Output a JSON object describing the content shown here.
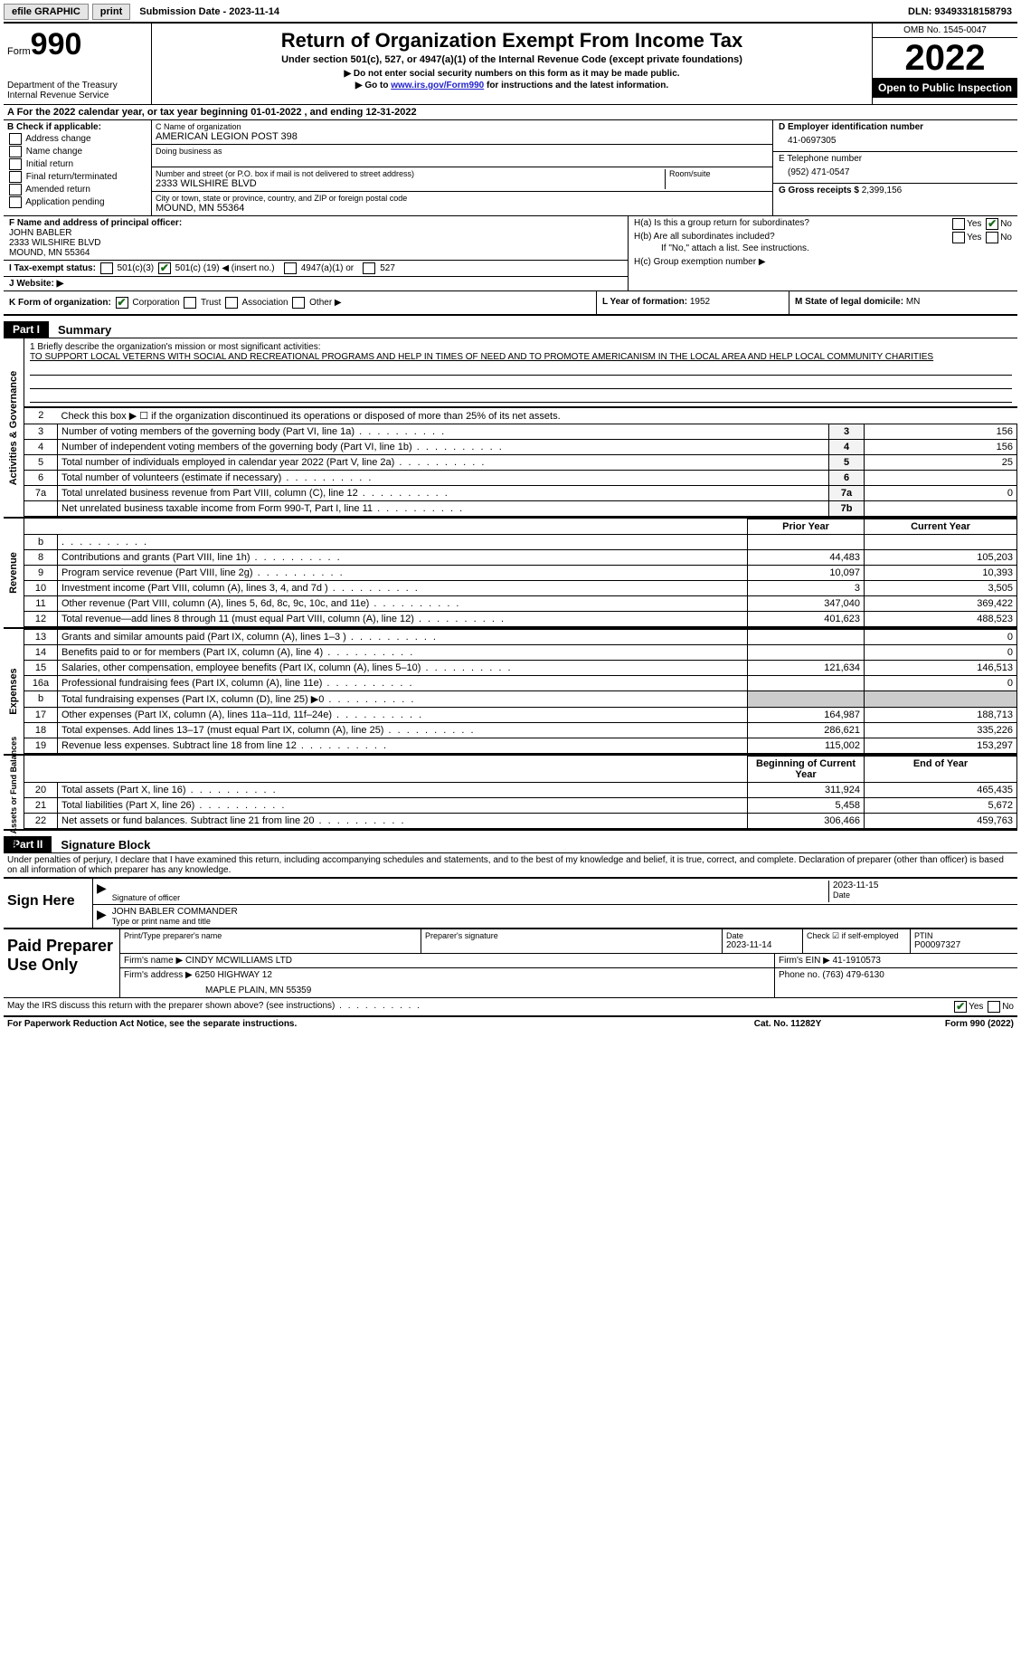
{
  "topbar": {
    "efile": "efile GRAPHIC",
    "print": "print",
    "submission_label": "Submission Date - ",
    "submission_date": "2023-11-14",
    "dln_label": "DLN: ",
    "dln": "93493318158793"
  },
  "header": {
    "form_word": "Form",
    "form_no": "990",
    "dept": "Department of the Treasury",
    "irs": "Internal Revenue Service",
    "title": "Return of Organization Exempt From Income Tax",
    "sub1": "Under section 501(c), 527, or 4947(a)(1) of the Internal Revenue Code (except private foundations)",
    "sub2": "▶ Do not enter social security numbers on this form as it may be made public.",
    "sub3_pre": "▶ Go to ",
    "sub3_link": "www.irs.gov/Form990",
    "sub3_post": " for instructions and the latest information.",
    "omb": "OMB No. 1545-0047",
    "year": "2022",
    "open": "Open to Public Inspection"
  },
  "line_a": "A  For the 2022 calendar year, or tax year beginning 01-01-2022    , and ending 12-31-2022",
  "block_b": {
    "title": "B Check if applicable:",
    "items": [
      "Address change",
      "Name change",
      "Initial return",
      "Final return/terminated",
      "Amended return",
      "Application pending"
    ]
  },
  "block_c": {
    "name_label": "C Name of organization",
    "name": "AMERICAN LEGION POST 398",
    "dba_label": "Doing business as",
    "addr_label": "Number and street (or P.O. box if mail is not delivered to street address)",
    "room_label": "Room/suite",
    "addr": "2333 WILSHIRE BLVD",
    "city_label": "City or town, state or province, country, and ZIP or foreign postal code",
    "city": "MOUND, MN  55364"
  },
  "block_d": {
    "ein_label": "D Employer identification number",
    "ein": "41-0697305",
    "tel_label": "E Telephone number",
    "tel": "(952) 471-0547",
    "gross_label": "G Gross receipts $ ",
    "gross": "2,399,156"
  },
  "block_f": {
    "label": "F  Name and address of principal officer:",
    "name": "JOHN BABLER",
    "addr1": "2333 WILSHIRE BLVD",
    "addr2": "MOUND, MN  55364"
  },
  "block_h": {
    "ha": "H(a)  Is this a group return for subordinates?",
    "hb": "H(b)  Are all subordinates included?",
    "hb_note": "If \"No,\" attach a list. See instructions.",
    "hc": "H(c)  Group exemption number ▶"
  },
  "tax_status": {
    "label": "I    Tax-exempt status:",
    "opt1": "501(c)(3)",
    "opt2_pre": "501(c) (",
    "opt2_num": "19",
    "opt2_post": ") ◀ (insert no.)",
    "opt3": "4947(a)(1) or",
    "opt4": "527"
  },
  "website": {
    "label": "J   Website: ▶"
  },
  "row_k": {
    "k_label": "K Form of organization:",
    "corp": "Corporation",
    "trust": "Trust",
    "assoc": "Association",
    "other": "Other ▶",
    "l_label": "L Year of formation: ",
    "l_val": "1952",
    "m_label": "M State of legal domicile: ",
    "m_val": "MN"
  },
  "part1": {
    "tag": "Part I",
    "title": "Summary"
  },
  "mission": {
    "q": "1   Briefly describe the organization's mission or most significant activities:",
    "text": "TO SUPPORT LOCAL VETERNS WITH SOCIAL AND RECREATIONAL PROGRAMS AND HELP IN TIMES OF NEED AND TO PROMOTE AMERICANISM IN THE LOCAL AREA AND HELP LOCAL COMMUNITY CHARITIES"
  },
  "side_labels": {
    "gov": "Activities & Governance",
    "rev": "Revenue",
    "exp": "Expenses",
    "net": "Net Assets or Fund Balances"
  },
  "gov_rows": [
    {
      "n": "2",
      "t": "Check this box ▶ ☐  if the organization discontinued its operations or disposed of more than 25% of its net assets.",
      "box": "",
      "v": ""
    },
    {
      "n": "3",
      "t": "Number of voting members of the governing body (Part VI, line 1a)",
      "box": "3",
      "v": "156"
    },
    {
      "n": "4",
      "t": "Number of independent voting members of the governing body (Part VI, line 1b)",
      "box": "4",
      "v": "156"
    },
    {
      "n": "5",
      "t": "Total number of individuals employed in calendar year 2022 (Part V, line 2a)",
      "box": "5",
      "v": "25"
    },
    {
      "n": "6",
      "t": "Total number of volunteers (estimate if necessary)",
      "box": "6",
      "v": ""
    },
    {
      "n": "7a",
      "t": "Total unrelated business revenue from Part VIII, column (C), line 12",
      "box": "7a",
      "v": "0"
    },
    {
      "n": "",
      "t": "Net unrelated business taxable income from Form 990-T, Part I, line 11",
      "box": "7b",
      "v": ""
    }
  ],
  "two_col_hdr": {
    "prior": "Prior Year",
    "curr": "Current Year"
  },
  "rev_rows": [
    {
      "n": "b",
      "t": "",
      "py": "",
      "cy": ""
    },
    {
      "n": "8",
      "t": "Contributions and grants (Part VIII, line 1h)",
      "py": "44,483",
      "cy": "105,203"
    },
    {
      "n": "9",
      "t": "Program service revenue (Part VIII, line 2g)",
      "py": "10,097",
      "cy": "10,393"
    },
    {
      "n": "10",
      "t": "Investment income (Part VIII, column (A), lines 3, 4, and 7d )",
      "py": "3",
      "cy": "3,505"
    },
    {
      "n": "11",
      "t": "Other revenue (Part VIII, column (A), lines 5, 6d, 8c, 9c, 10c, and 11e)",
      "py": "347,040",
      "cy": "369,422"
    },
    {
      "n": "12",
      "t": "Total revenue—add lines 8 through 11 (must equal Part VIII, column (A), line 12)",
      "py": "401,623",
      "cy": "488,523"
    }
  ],
  "exp_rows": [
    {
      "n": "13",
      "t": "Grants and similar amounts paid (Part IX, column (A), lines 1–3 )",
      "py": "",
      "cy": "0"
    },
    {
      "n": "14",
      "t": "Benefits paid to or for members (Part IX, column (A), line 4)",
      "py": "",
      "cy": "0"
    },
    {
      "n": "15",
      "t": "Salaries, other compensation, employee benefits (Part IX, column (A), lines 5–10)",
      "py": "121,634",
      "cy": "146,513"
    },
    {
      "n": "16a",
      "t": "Professional fundraising fees (Part IX, column (A), line 11e)",
      "py": "",
      "cy": "0"
    },
    {
      "n": "b",
      "t": "Total fundraising expenses (Part IX, column (D), line 25) ▶0",
      "py": "GRAY",
      "cy": "GRAY"
    },
    {
      "n": "17",
      "t": "Other expenses (Part IX, column (A), lines 11a–11d, 11f–24e)",
      "py": "164,987",
      "cy": "188,713"
    },
    {
      "n": "18",
      "t": "Total expenses. Add lines 13–17 (must equal Part IX, column (A), line 25)",
      "py": "286,621",
      "cy": "335,226"
    },
    {
      "n": "19",
      "t": "Revenue less expenses. Subtract line 18 from line 12",
      "py": "115,002",
      "cy": "153,297"
    }
  ],
  "net_hdr": {
    "beg": "Beginning of Current Year",
    "end": "End of Year"
  },
  "net_rows": [
    {
      "n": "20",
      "t": "Total assets (Part X, line 16)",
      "py": "311,924",
      "cy": "465,435"
    },
    {
      "n": "21",
      "t": "Total liabilities (Part X, line 26)",
      "py": "5,458",
      "cy": "5,672"
    },
    {
      "n": "22",
      "t": "Net assets or fund balances. Subtract line 21 from line 20",
      "py": "306,466",
      "cy": "459,763"
    }
  ],
  "part2": {
    "tag": "Part II",
    "title": "Signature Block"
  },
  "perjury": "Under penalties of perjury, I declare that I have examined this return, including accompanying schedules and statements, and to the best of my knowledge and belief, it is true, correct, and complete. Declaration of preparer (other than officer) is based on all information of which preparer has any knowledge.",
  "sign": {
    "label": "Sign Here",
    "sig_label": "Signature of officer",
    "date": "2023-11-15",
    "date_label": "Date",
    "name": "JOHN BABLER  COMMANDER",
    "name_label": "Type or print name and title"
  },
  "preparer": {
    "label": "Paid Preparer Use Only",
    "print_label": "Print/Type preparer's name",
    "sig_label": "Preparer's signature",
    "date_label": "Date",
    "date": "2023-11-14",
    "check_label": "Check ☑ if self-employed",
    "ptin_label": "PTIN",
    "ptin": "P00097327",
    "firm_name_label": "Firm's name    ▶ ",
    "firm_name": "CINDY MCWILLIAMS LTD",
    "firm_ein_label": "Firm's EIN ▶ ",
    "firm_ein": "41-1910573",
    "firm_addr_label": "Firm's address ▶ ",
    "firm_addr1": "6250 HIGHWAY 12",
    "firm_addr2": "MAPLE PLAIN, MN  55359",
    "phone_label": "Phone no. ",
    "phone": "(763) 479-6130"
  },
  "discuss": {
    "q": "May the IRS discuss this return with the preparer shown above? (see instructions)",
    "yes": "Yes",
    "no": "No"
  },
  "footer": {
    "pra": "For Paperwork Reduction Act Notice, see the separate instructions.",
    "cat": "Cat. No. 11282Y",
    "form": "Form 990 (2022)"
  }
}
